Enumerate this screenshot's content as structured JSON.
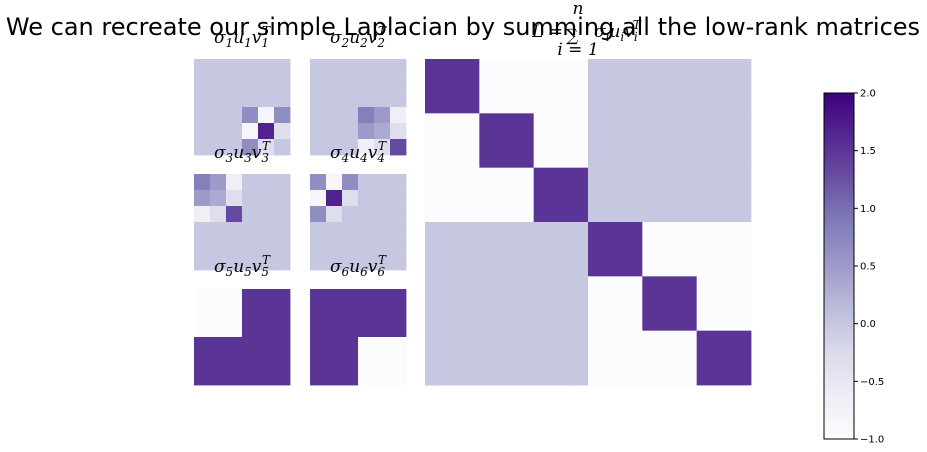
{
  "title": "We can recreate our simple Laplacian by summing all the low-rank matrices",
  "colormap": {
    "name": "Purples",
    "vmin": -1.0,
    "vmax": 2.0,
    "stops": [
      "#fcfbfd",
      "#efedf5",
      "#dadaeb",
      "#bcbddc",
      "#9e9ac8",
      "#807dba",
      "#6a51a3",
      "#54278f",
      "#3f007d"
    ]
  },
  "colorbar": {
    "ticks": [
      2.0,
      1.5,
      1.0,
      0.5,
      0.0,
      -0.5,
      -1.0
    ],
    "tick_labels": [
      "2.0",
      "1.5",
      "1.0",
      "0.5",
      "0.0",
      "−0.5",
      "−1.0"
    ]
  },
  "panels": [
    {
      "id": "p1",
      "label": "σ₁u₁v₁ᵀ",
      "title_parts": [
        "σ",
        "1",
        "u",
        "1",
        "v",
        "1"
      ],
      "matrix": [
        [
          0,
          0,
          0,
          0,
          0,
          0
        ],
        [
          0,
          0,
          0,
          0,
          0,
          0
        ],
        [
          0,
          0,
          0,
          0,
          0,
          0
        ],
        [
          0,
          0,
          0,
          0.67,
          -0.83,
          0.67
        ],
        [
          0,
          0,
          0,
          -0.83,
          1.67,
          -0.33
        ],
        [
          0,
          0,
          0,
          0.67,
          -0.33,
          0
        ]
      ]
    },
    {
      "id": "p2",
      "label": "σ₂u₂v₂ᵀ",
      "title_parts": [
        "σ",
        "2",
        "u",
        "2",
        "v",
        "2"
      ],
      "matrix": [
        [
          0,
          0,
          0,
          0,
          0,
          0
        ],
        [
          0,
          0,
          0,
          0,
          0,
          0
        ],
        [
          0,
          0,
          0,
          0,
          0,
          0
        ],
        [
          0,
          0,
          0,
          0.83,
          0.5,
          -0.67
        ],
        [
          0,
          0,
          0,
          0.5,
          0.33,
          -0.33
        ],
        [
          0,
          0,
          0,
          -0.67,
          -0.33,
          1.33
        ]
      ]
    },
    {
      "id": "p3",
      "label": "σ₃u₃v₃ᵀ",
      "title_parts": [
        "σ",
        "3",
        "u",
        "3",
        "v",
        "3"
      ],
      "matrix": [
        [
          0.83,
          0.5,
          -0.67,
          0,
          0,
          0
        ],
        [
          0.5,
          0.33,
          -0.33,
          0,
          0,
          0
        ],
        [
          -0.67,
          -0.33,
          1.33,
          0,
          0,
          0
        ],
        [
          0,
          0,
          0,
          0,
          0,
          0
        ],
        [
          0,
          0,
          0,
          0,
          0,
          0
        ],
        [
          0,
          0,
          0,
          0,
          0,
          0
        ]
      ]
    },
    {
      "id": "p4",
      "label": "σ₄u₄v₄ᵀ",
      "title_parts": [
        "σ",
        "4",
        "u",
        "4",
        "v",
        "4"
      ],
      "matrix": [
        [
          0.67,
          -0.83,
          0.67,
          0,
          0,
          0
        ],
        [
          -0.83,
          1.67,
          -0.33,
          0,
          0,
          0
        ],
        [
          0.67,
          -0.33,
          0,
          0,
          0,
          0
        ],
        [
          0,
          0,
          0,
          0,
          0,
          0
        ],
        [
          0,
          0,
          0,
          0,
          0,
          0
        ],
        [
          0,
          0,
          0,
          0,
          0,
          0
        ]
      ]
    },
    {
      "id": "p5",
      "label": "σ₅u₅v₅ᵀ",
      "title_parts": [
        "σ",
        "5",
        "u",
        "5",
        "v",
        "5"
      ],
      "matrix": [
        [
          -1,
          -1,
          -1,
          1.5,
          1.5,
          1.5
        ],
        [
          -1,
          -1,
          -1,
          1.5,
          1.5,
          1.5
        ],
        [
          -1,
          -1,
          -1,
          1.5,
          1.5,
          1.5
        ],
        [
          1.5,
          1.5,
          1.5,
          1.5,
          1.5,
          1.5
        ],
        [
          1.5,
          1.5,
          1.5,
          1.5,
          1.5,
          1.5
        ],
        [
          1.5,
          1.5,
          1.5,
          1.5,
          1.5,
          1.5
        ]
      ]
    },
    {
      "id": "p6",
      "label": "σ₆u₆v₆ᵀ",
      "title_parts": [
        "σ",
        "6",
        "u",
        "6",
        "v",
        "6"
      ],
      "matrix": [
        [
          1.5,
          1.5,
          1.5,
          1.5,
          1.5,
          1.5
        ],
        [
          1.5,
          1.5,
          1.5,
          1.5,
          1.5,
          1.5
        ],
        [
          1.5,
          1.5,
          1.5,
          1.5,
          1.5,
          1.5
        ],
        [
          1.5,
          1.5,
          1.5,
          -1,
          -1,
          -1
        ],
        [
          1.5,
          1.5,
          1.5,
          -1,
          -1,
          -1
        ],
        [
          1.5,
          1.5,
          1.5,
          -1,
          -1,
          -1
        ]
      ]
    },
    {
      "id": "sum",
      "label": "L = ∑ σᵢuᵢvᵢᵀ (i = 1 to n)",
      "title_parts": [
        "L = ",
        "n",
        "i = 1",
        "σ",
        "i",
        "u",
        "i",
        "v",
        "i"
      ],
      "matrix": [
        [
          1.5,
          -1,
          -1,
          0,
          0,
          0
        ],
        [
          -1,
          1.5,
          -1,
          0,
          0,
          0
        ],
        [
          -1,
          -1,
          1.5,
          0,
          0,
          0
        ],
        [
          0,
          0,
          0,
          1.5,
          -1,
          -1
        ],
        [
          0,
          0,
          0,
          -1,
          1.5,
          -1
        ],
        [
          0,
          0,
          0,
          -1,
          -1,
          1.5
        ]
      ]
    }
  ],
  "chart_data": {
    "type": "heatmap",
    "title": "We can recreate our simple Laplacian by summing all the low-rank matrices",
    "colorbar_range": [
      -1.0,
      2.0
    ],
    "colorbar_ticks": [
      -1.0,
      -0.5,
      0.0,
      0.5,
      1.0,
      1.5,
      2.0
    ],
    "series": [
      {
        "name": "σ₁u₁v₁ᵀ",
        "shape": [
          6,
          6
        ],
        "nonzero_block": "rows 4-6, cols 4-6"
      },
      {
        "name": "σ₂u₂v₂ᵀ",
        "shape": [
          6,
          6
        ],
        "nonzero_block": "rows 4-6, cols 4-6"
      },
      {
        "name": "σ₃u₃v₃ᵀ",
        "shape": [
          6,
          6
        ],
        "nonzero_block": "rows 1-3, cols 1-3"
      },
      {
        "name": "σ₄u₄v₄ᵀ",
        "shape": [
          6,
          6
        ],
        "nonzero_block": "rows 1-3, cols 1-3"
      },
      {
        "name": "σ₅u₅v₅ᵀ",
        "shape": [
          6,
          6
        ]
      },
      {
        "name": "σ₆u₆v₆ᵀ",
        "shape": [
          6,
          6
        ]
      },
      {
        "name": "L = ∑ σᵢuᵢvᵢᵀ",
        "shape": [
          6,
          6
        ],
        "values": [
          [
            1.5,
            -1,
            -1,
            0,
            0,
            0
          ],
          [
            -1,
            1.5,
            -1,
            0,
            0,
            0
          ],
          [
            -1,
            -1,
            1.5,
            0,
            0,
            0
          ],
          [
            0,
            0,
            0,
            1.5,
            -1,
            -1
          ],
          [
            0,
            0,
            0,
            -1,
            1.5,
            -1
          ],
          [
            0,
            0,
            0,
            -1,
            -1,
            1.5
          ]
        ]
      }
    ]
  }
}
